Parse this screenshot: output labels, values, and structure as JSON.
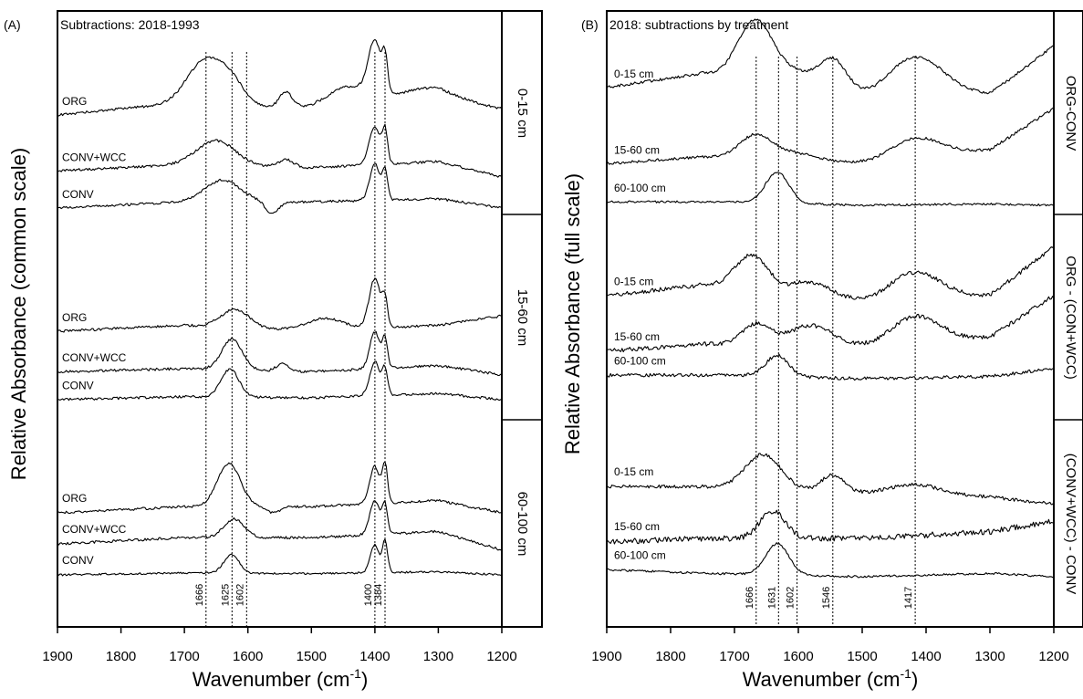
{
  "chart_data": [
    {
      "type": "line",
      "panel_letter": "(A)",
      "title": "Subtractions: 2018-1993",
      "xlabel": "Wavenumber (cm",
      "xlabel_sup": "-1",
      "xlabel_tail": ")",
      "ylabel": "Relative Absorbance (common scale)",
      "xlim": [
        1900,
        1200
      ],
      "xticks": [
        "1900",
        "1800",
        "1700",
        "1600",
        "1500",
        "1400",
        "1300",
        "1200"
      ],
      "groups": [
        {
          "label": "0-15 cm",
          "series": [
            {
              "name": "ORG",
              "profile": "orgA1",
              "baseline": 0.13
            },
            {
              "name": "CONV+WCC",
              "profile": "wccA1",
              "baseline": 0.05
            },
            {
              "name": "CONV",
              "profile": "convA1",
              "baseline": 0.0
            }
          ]
        },
        {
          "label": "15-60 cm",
          "series": [
            {
              "name": "ORG",
              "profile": "orgA2",
              "baseline": 0.1
            },
            {
              "name": "CONV+WCC",
              "profile": "wccA2",
              "baseline": 0.04
            },
            {
              "name": "CONV",
              "profile": "convA2",
              "baseline": 0.0
            }
          ]
        },
        {
          "label": "60-100 cm",
          "series": [
            {
              "name": "ORG",
              "profile": "orgA3",
              "baseline": 0.1
            },
            {
              "name": "CONV+WCC",
              "profile": "wccA3",
              "baseline": 0.05
            },
            {
              "name": "CONV",
              "profile": "convA3",
              "baseline": 0.0
            }
          ]
        }
      ],
      "peaks": [
        {
          "label": "1666",
          "x": 1666
        },
        {
          "label": "1625",
          "x": 1625
        },
        {
          "label": "1602",
          "x": 1602
        },
        {
          "label": "1400",
          "x": 1400
        },
        {
          "label": "1384",
          "x": 1384
        }
      ]
    },
    {
      "type": "line",
      "panel_letter": "(B)",
      "title": "2018: subtractions by treatment",
      "xlabel": "Wavenumber (cm",
      "xlabel_sup": "-1",
      "xlabel_tail": ")",
      "ylabel": "Relative Absorbance (full scale)",
      "xlim": [
        1900,
        1200
      ],
      "xticks": [
        "1900",
        "1800",
        "1700",
        "1600",
        "1500",
        "1400",
        "1300",
        "1200"
      ],
      "groups": [
        {
          "label": "ORG-CONV",
          "series": [
            {
              "name": "0-15 cm",
              "profile": "b1top",
              "baseline": 0.14
            },
            {
              "name": "15-60 cm",
              "profile": "b1mid",
              "baseline": 0.06
            },
            {
              "name": "60-100 cm",
              "profile": "b1bot",
              "baseline": 0.0
            }
          ]
        },
        {
          "label": "ORG - (CON+WCC)",
          "series": [
            {
              "name": "0-15 cm",
              "profile": "b2top",
              "baseline": 0.1
            },
            {
              "name": "15-60 cm",
              "profile": "b2mid",
              "baseline": 0.04
            },
            {
              "name": "60-100 cm",
              "profile": "b2bot",
              "baseline": 0.0
            }
          ]
        },
        {
          "label": "(CONV+WCC) - CONV",
          "series": [
            {
              "name": "0-15 cm",
              "profile": "b3top",
              "baseline": 0.1
            },
            {
              "name": "15-60 cm",
              "profile": "b3mid",
              "baseline": 0.05
            },
            {
              "name": "60-100 cm",
              "profile": "b3bot",
              "baseline": 0.0
            }
          ]
        }
      ],
      "peaks": [
        {
          "label": "1666",
          "x": 1666
        },
        {
          "label": "1631",
          "x": 1631
        },
        {
          "label": "1602",
          "x": 1602
        },
        {
          "label": "1546",
          "x": 1546
        },
        {
          "label": "1417",
          "x": 1417
        }
      ]
    }
  ]
}
